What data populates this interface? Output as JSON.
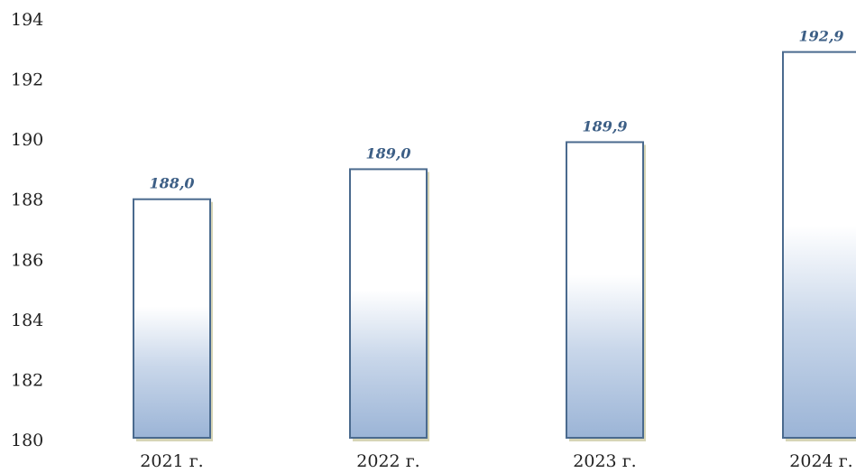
{
  "chart_data": {
    "type": "bar",
    "categories": [
      "2021 г.",
      "2022 г.",
      "2023 г.",
      "2024 г."
    ],
    "values": [
      188.0,
      189.0,
      189.9,
      192.9
    ],
    "value_labels": [
      "188,0",
      "189,0",
      "189,9",
      "192,9"
    ],
    "title": "",
    "xlabel": "",
    "ylabel": "",
    "ylim": [
      180,
      194
    ],
    "yticks": [
      180,
      182,
      184,
      186,
      188,
      190,
      192,
      194
    ],
    "grid": false,
    "legend": "none"
  },
  "colors": {
    "bar_fill_top": "#ffffff",
    "bar_fill_bottom": "#9bb4d6",
    "bar_outline": "#4a6a8e",
    "bar_edge_shadow": "#b7b27a",
    "value_label": "#3d5f86",
    "text": "#222222"
  }
}
